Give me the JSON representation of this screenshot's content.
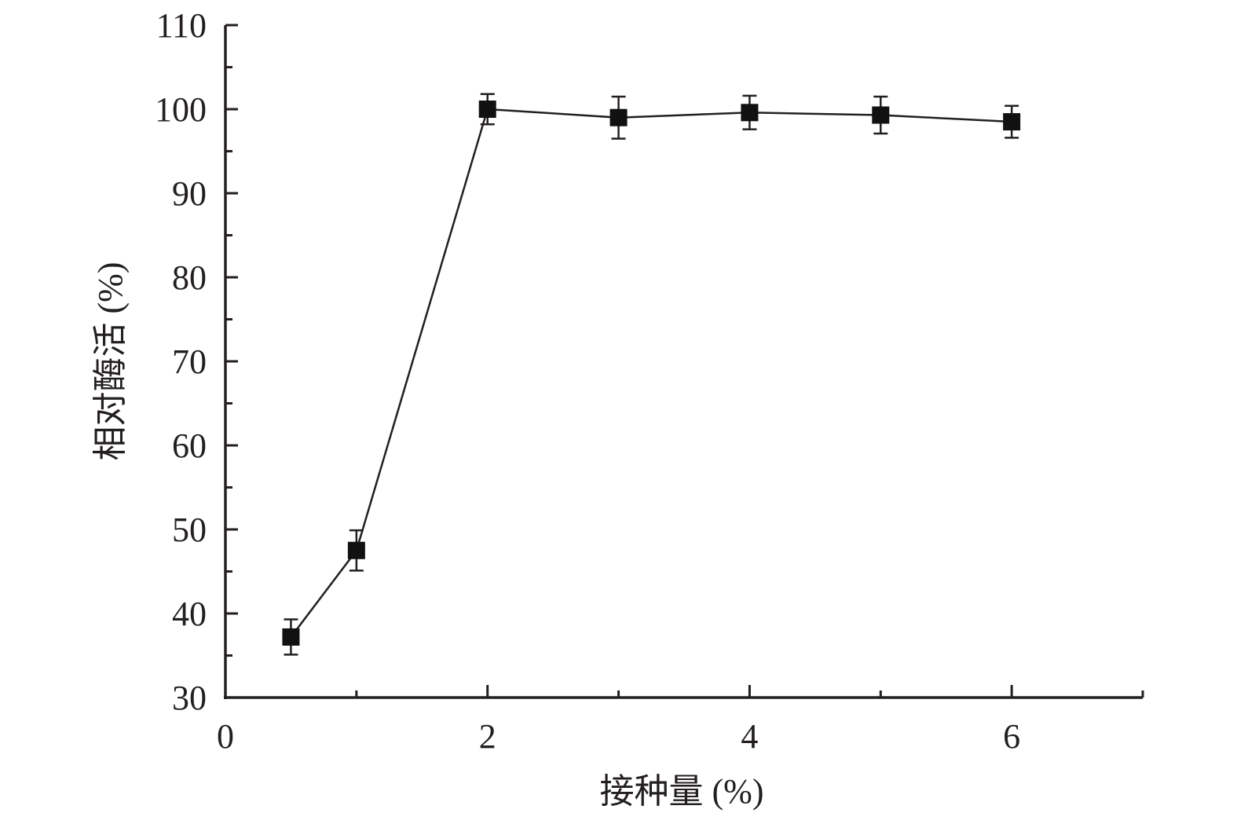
{
  "chart_data": {
    "type": "line",
    "title": "",
    "xlabel": "接种量 (%)",
    "ylabel": "相对酶活 (%)",
    "xlim": [
      0,
      7
    ],
    "ylim": [
      30,
      110
    ],
    "x_major_ticks": [
      0,
      2,
      4,
      6
    ],
    "x_minor_ticks": [
      1,
      3,
      5,
      7
    ],
    "x_tick_labels": [
      "0",
      "2",
      "4",
      "6"
    ],
    "y_major_ticks": [
      30,
      40,
      50,
      60,
      70,
      80,
      90,
      100,
      110
    ],
    "y_tick_labels": [
      "30",
      "40",
      "50",
      "60",
      "70",
      "80",
      "90",
      "100",
      "110"
    ],
    "grid": false,
    "legend": "none",
    "marker": "square",
    "series_color": "#111111",
    "axis_color": "#231f20",
    "series": [
      {
        "x": [
          0.5,
          1,
          2,
          3,
          4,
          5,
          6
        ],
        "values": [
          37.2,
          47.5,
          100.0,
          99.0,
          99.6,
          99.3,
          98.5
        ],
        "error": [
          2.1,
          2.4,
          1.8,
          2.5,
          2.0,
          2.2,
          1.9
        ]
      }
    ]
  }
}
